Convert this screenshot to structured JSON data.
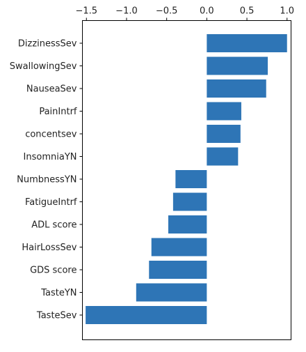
{
  "chart_data": {
    "type": "bar",
    "orientation": "horizontal",
    "title": "",
    "xlabel": "",
    "ylabel": "",
    "categories": [
      "DizzinessSev",
      "SwallowingSev",
      "NauseaSev",
      "PainIntrf",
      "concentsev",
      "InsomniaYN",
      "NumbnessYN",
      "FatigueIntrf",
      "ADL score",
      "HairLossSev",
      "GDS score",
      "TasteYN",
      "TasteSev"
    ],
    "values": [
      1.0,
      0.76,
      0.74,
      0.43,
      0.42,
      0.39,
      -0.39,
      -0.42,
      -0.48,
      -0.69,
      -0.72,
      -0.88,
      -1.51
    ],
    "x_ticks": [
      -1.5,
      -1.0,
      -0.5,
      0.0,
      0.5,
      1.0
    ],
    "x_tick_labels": [
      "−1.5",
      "−1.0",
      "−0.5",
      "0.0",
      "0.5",
      "1.0"
    ],
    "xlim": [
      -1.55,
      1.05
    ],
    "x_axis_position": "top",
    "grid": false,
    "bar_color": "#2e75b6"
  }
}
